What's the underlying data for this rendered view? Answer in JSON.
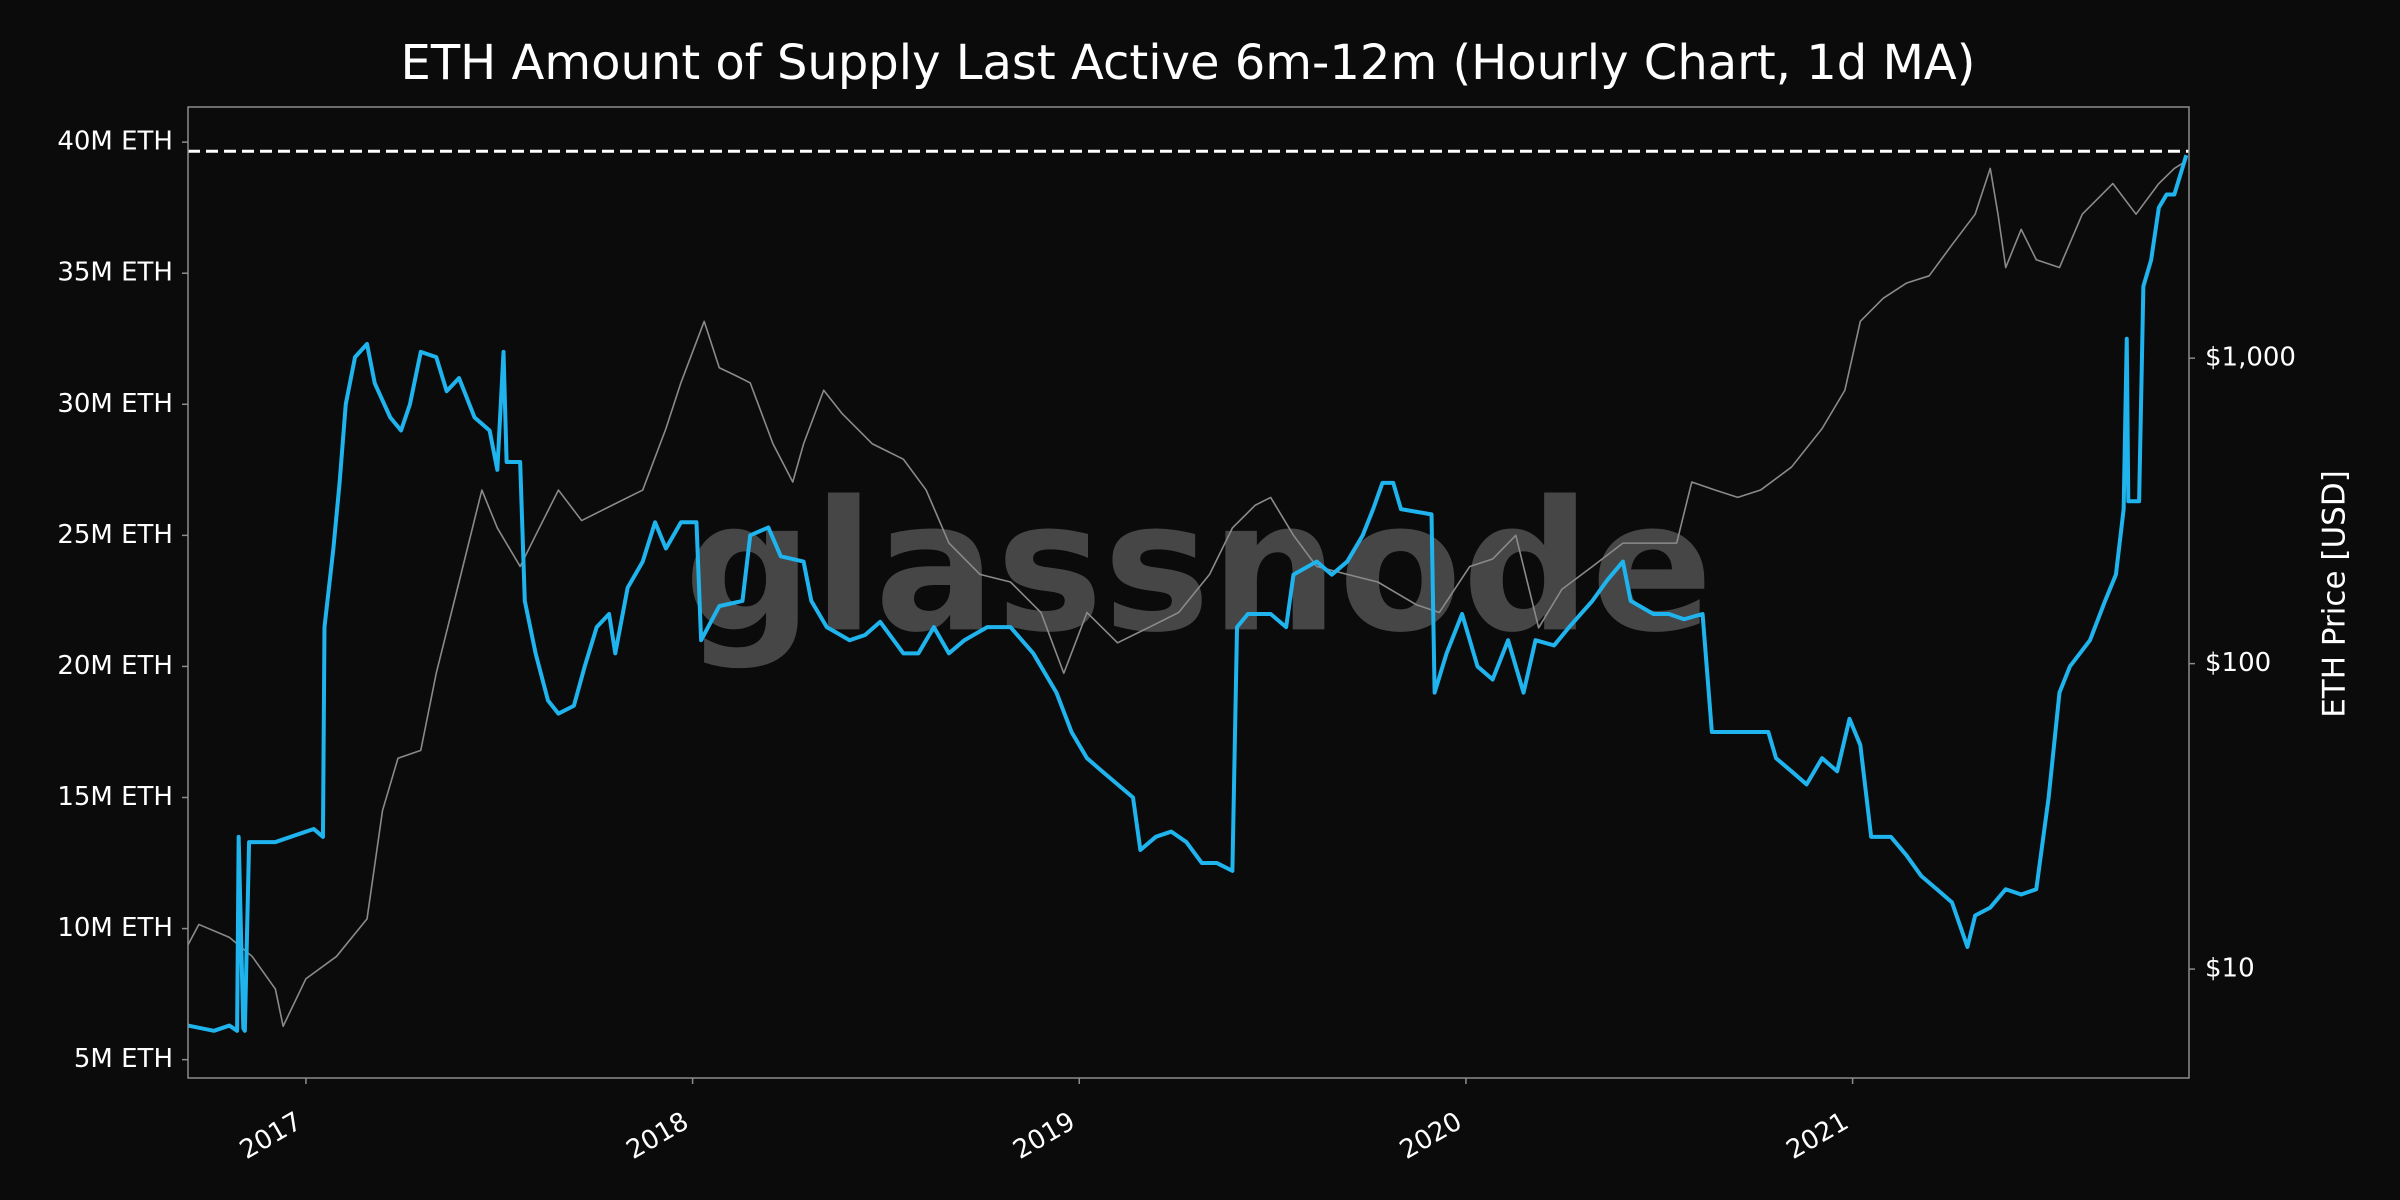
{
  "chart_data": {
    "type": "line",
    "title": "ETH Amount of Supply Last Active 6m-12m (Hourly Chart, 1d MA)",
    "watermark": "glassnode",
    "y2_label": "ETH Price [USD]",
    "xlim": [
      2016.695,
      2021.87
    ],
    "xticks": [
      2017,
      2018,
      2019,
      2020,
      2021
    ],
    "ylim": [
      4.3,
      41.34
    ],
    "yticks": [
      {
        "value": 5,
        "label": "5M ETH"
      },
      {
        "value": 10,
        "label": "10M ETH"
      },
      {
        "value": 15,
        "label": "15M ETH"
      },
      {
        "value": 20,
        "label": "20M ETH"
      },
      {
        "value": 25,
        "label": "25M ETH"
      },
      {
        "value": 30,
        "label": "30M ETH"
      },
      {
        "value": 35,
        "label": "35M ETH"
      },
      {
        "value": 40,
        "label": "40M ETH"
      }
    ],
    "y2lim": [
      4.4,
      6640
    ],
    "y2scale": "log",
    "y2ticks": [
      {
        "value": 10,
        "label": "$10"
      },
      {
        "value": 100,
        "label": "$100"
      },
      {
        "value": 1000,
        "label": "$1,000"
      }
    ],
    "hline": {
      "value": 39.65,
      "color": "#ffffff",
      "style": "dashed"
    },
    "series": [
      {
        "name": "ETH Price",
        "color": "#8a8a8a",
        "axis": "y2",
        "x": [
          2016.695,
          2016.723,
          2016.802,
          2016.861,
          2016.921,
          2016.941,
          2017.0,
          2017.079,
          2017.158,
          2017.198,
          2017.238,
          2017.297,
          2017.337,
          2017.396,
          2017.455,
          2017.495,
          2017.554,
          2017.594,
          2017.653,
          2017.713,
          2017.792,
          2017.871,
          2017.931,
          2017.97,
          2018.03,
          2018.069,
          2018.109,
          2018.149,
          2018.208,
          2018.259,
          2018.287,
          2018.339,
          2018.386,
          2018.465,
          2018.545,
          2018.604,
          2018.663,
          2018.743,
          2018.822,
          2018.901,
          2018.96,
          2019.02,
          2019.099,
          2019.178,
          2019.257,
          2019.337,
          2019.396,
          2019.455,
          2019.495,
          2019.554,
          2019.614,
          2019.693,
          2019.772,
          2019.871,
          2019.931,
          2020.01,
          2020.069,
          2020.129,
          2020.188,
          2020.248,
          2020.327,
          2020.406,
          2020.485,
          2020.545,
          2020.584,
          2020.644,
          2020.703,
          2020.762,
          2020.842,
          2020.921,
          2020.98,
          2021.02,
          2021.079,
          2021.139,
          2021.198,
          2021.257,
          2021.317,
          2021.356,
          2021.376,
          2021.396,
          2021.436,
          2021.475,
          2021.535,
          2021.594,
          2021.673,
          2021.733,
          2021.792,
          2021.832,
          2021.863
        ],
        "values": [
          12,
          14,
          12.7,
          11,
          8.6,
          6.5,
          9.3,
          11,
          14.6,
          33,
          49,
          52,
          93,
          185,
          370,
          278,
          208,
          263,
          370,
          294,
          330,
          370,
          588,
          832,
          1320,
          930,
          880,
          830,
          524,
          393,
          524,
          785,
          660,
          524,
          467,
          370,
          248,
          196,
          185,
          147,
          93,
          147,
          117,
          131,
          147,
          196,
          278,
          330,
          350,
          263,
          208,
          196,
          185,
          156,
          147,
          208,
          220,
          263,
          131,
          175,
          208,
          248,
          248,
          248,
          393,
          370,
          350,
          370,
          440,
          588,
          785,
          1320,
          1570,
          1760,
          1860,
          2350,
          2960,
          4180,
          2960,
          1980,
          2640,
          2100,
          1980,
          2960,
          3730,
          2960,
          3730,
          4180,
          4420
        ]
      },
      {
        "name": "Supply Last Active 6m-12m",
        "color": "#1fb4ee",
        "axis": "y",
        "x": [
          2016.695,
          2016.762,
          2016.802,
          2016.822,
          2016.826,
          2016.838,
          2016.842,
          2016.853,
          2016.921,
          2017.02,
          2017.044,
          2017.048,
          2017.071,
          2017.087,
          2017.103,
          2017.127,
          2017.158,
          2017.178,
          2017.218,
          2017.246,
          2017.269,
          2017.297,
          2017.337,
          2017.364,
          2017.396,
          2017.436,
          2017.475,
          2017.495,
          2017.511,
          2017.519,
          2017.554,
          2017.566,
          2017.594,
          2017.626,
          2017.653,
          2017.693,
          2017.721,
          2017.752,
          2017.784,
          2017.8,
          2017.832,
          2017.871,
          2017.903,
          2017.931,
          2017.97,
          2018.01,
          2018.022,
          2018.069,
          2018.129,
          2018.149,
          2018.196,
          2018.228,
          2018.287,
          2018.307,
          2018.347,
          2018.406,
          2018.446,
          2018.485,
          2018.545,
          2018.584,
          2018.624,
          2018.663,
          2018.703,
          2018.762,
          2018.822,
          2018.881,
          2018.941,
          2018.98,
          2019.02,
          2019.059,
          2019.099,
          2019.139,
          2019.158,
          2019.198,
          2019.238,
          2019.277,
          2019.317,
          2019.356,
          2019.396,
          2019.408,
          2019.436,
          2019.495,
          2019.535,
          2019.554,
          2019.614,
          2019.653,
          2019.693,
          2019.733,
          2019.76,
          2019.784,
          2019.812,
          2019.832,
          2019.911,
          2019.919,
          2019.95,
          2019.99,
          2020.03,
          2020.069,
          2020.109,
          2020.149,
          2020.18,
          2020.228,
          2020.267,
          2020.327,
          2020.366,
          2020.406,
          2020.426,
          2020.485,
          2020.525,
          2020.564,
          2020.612,
          2020.636,
          2020.663,
          2020.723,
          2020.782,
          2020.802,
          2020.842,
          2020.881,
          2020.921,
          2020.96,
          2020.992,
          2021.02,
          2021.048,
          2021.099,
          2021.139,
          2021.178,
          2021.218,
          2021.257,
          2021.297,
          2021.317,
          2021.356,
          2021.396,
          2021.436,
          2021.475,
          2021.507,
          2021.535,
          2021.562,
          2021.614,
          2021.653,
          2021.681,
          2021.701,
          2021.709,
          2021.713,
          2021.741,
          2021.752,
          2021.772,
          2021.792,
          2021.812,
          2021.832,
          2021.863
        ],
        "values": [
          6.3,
          6.1,
          6.3,
          6.1,
          13.5,
          6.2,
          6.1,
          13.3,
          13.3,
          13.8,
          13.5,
          21.5,
          24.5,
          27,
          30,
          31.8,
          32.3,
          30.8,
          29.5,
          29,
          30,
          32,
          31.8,
          30.5,
          31,
          29.5,
          29,
          27.5,
          32,
          27.8,
          27.8,
          22.5,
          20.5,
          18.7,
          18.2,
          18.5,
          20,
          21.5,
          22,
          20.5,
          23,
          24,
          25.5,
          24.5,
          25.5,
          25.5,
          21,
          22.3,
          22.5,
          25,
          25.3,
          24.2,
          24,
          22.5,
          21.5,
          21,
          21.2,
          21.7,
          20.5,
          20.5,
          21.5,
          20.5,
          21,
          21.5,
          21.5,
          20.5,
          19,
          17.5,
          16.5,
          16,
          15.5,
          15,
          13,
          13.5,
          13.7,
          13.3,
          12.5,
          12.5,
          12.2,
          21.5,
          22,
          22,
          21.5,
          23.5,
          24,
          23.5,
          24,
          25,
          26,
          27,
          27,
          26,
          25.8,
          19,
          20.5,
          22,
          20,
          19.5,
          21,
          19,
          21,
          20.8,
          21.5,
          22.5,
          23.3,
          24,
          22.5,
          22,
          22,
          21.8,
          22,
          17.5,
          17.5,
          17.5,
          17.5,
          16.5,
          16,
          15.5,
          16.5,
          16,
          18,
          17,
          13.5,
          13.5,
          12.8,
          12,
          11.5,
          11,
          9.3,
          10.5,
          10.8,
          11.5,
          11.3,
          11.5,
          15,
          19,
          20,
          21,
          22.5,
          23.5,
          26,
          32.5,
          26.3,
          26.3,
          34.5,
          35.5,
          37.5,
          38,
          38,
          39.5
        ]
      }
    ]
  }
}
